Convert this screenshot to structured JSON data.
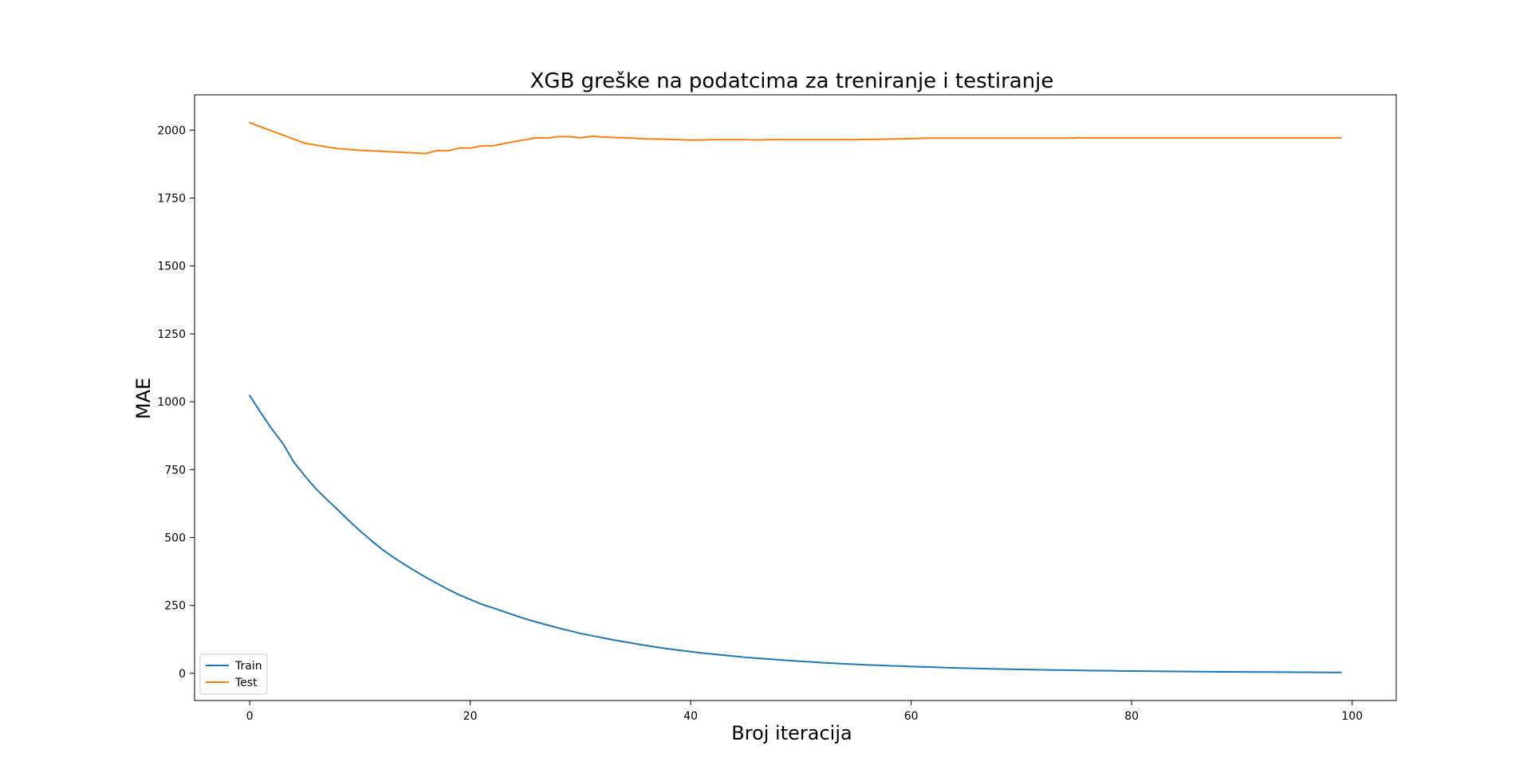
{
  "chart_data": {
    "type": "line",
    "title": "XGB greške na podatcima za treniranje i testiranje",
    "xlabel": "Broj iteracija",
    "ylabel": "MAE",
    "xlim": [
      -5,
      104
    ],
    "ylim": [
      -100,
      2130
    ],
    "xticks": [
      0,
      20,
      40,
      60,
      80,
      100
    ],
    "yticks": [
      0,
      250,
      500,
      750,
      1000,
      1250,
      1500,
      1750,
      2000
    ],
    "grid": false,
    "legend_position": "lower-left",
    "series": [
      {
        "name": "Train",
        "color": "#1f77b4",
        "x": [
          0,
          1,
          2,
          3,
          4,
          5,
          6,
          7,
          8,
          9,
          10,
          11,
          12,
          13,
          14,
          15,
          16,
          17,
          18,
          19,
          20,
          21,
          22,
          23,
          24,
          25,
          26,
          27,
          28,
          29,
          30,
          31,
          32,
          33,
          34,
          35,
          36,
          37,
          38,
          39,
          40,
          41,
          42,
          43,
          44,
          45,
          46,
          47,
          48,
          49,
          50,
          51,
          52,
          53,
          54,
          55,
          56,
          57,
          58,
          59,
          60,
          61,
          62,
          63,
          64,
          65,
          66,
          67,
          68,
          69,
          70,
          71,
          72,
          73,
          74,
          75,
          76,
          77,
          78,
          79,
          80,
          81,
          82,
          83,
          84,
          85,
          86,
          87,
          88,
          89,
          90,
          91,
          92,
          93,
          94,
          95,
          96,
          97,
          98,
          99
        ],
        "values": [
          1023,
          960,
          900,
          847,
          778,
          727,
          680,
          640,
          602,
          562,
          525,
          490,
          457,
          428,
          402,
          377,
          353,
          331,
          309,
          289,
          272,
          255,
          242,
          228,
          214,
          201,
          189,
          178,
          167,
          157,
          147,
          139,
          131,
          123,
          116,
          109,
          102,
          96,
          90,
          85,
          80,
          75,
          71,
          67,
          63,
          59,
          56,
          53,
          50,
          47,
          44,
          42,
          39,
          37,
          35,
          33,
          31,
          30,
          28,
          27,
          25,
          24,
          23,
          21,
          20,
          19,
          18,
          17,
          16,
          15,
          14.5,
          13.8,
          13,
          12.3,
          11.7,
          11,
          10.5,
          10,
          9.5,
          9,
          8.6,
          8.2,
          7.8,
          7.4,
          7,
          6.7,
          6.4,
          6.1,
          5.8,
          5.5,
          5.3,
          5,
          4.8,
          4.6,
          4.4,
          4.2,
          4,
          3.8,
          3.6,
          3.5
        ]
      },
      {
        "name": "Test",
        "color": "#ff7f0e",
        "x": [
          0,
          1,
          2,
          3,
          4,
          5,
          6,
          7,
          8,
          9,
          10,
          11,
          12,
          13,
          14,
          15,
          16,
          17,
          18,
          19,
          20,
          21,
          22,
          23,
          24,
          25,
          26,
          27,
          28,
          29,
          30,
          31,
          32,
          33,
          34,
          35,
          36,
          37,
          38,
          39,
          40,
          41,
          42,
          43,
          44,
          45,
          46,
          47,
          48,
          49,
          50,
          51,
          52,
          53,
          54,
          55,
          56,
          57,
          58,
          59,
          60,
          61,
          62,
          63,
          64,
          65,
          66,
          67,
          68,
          69,
          70,
          71,
          72,
          73,
          74,
          75,
          76,
          77,
          78,
          79,
          80,
          81,
          82,
          83,
          84,
          85,
          86,
          87,
          88,
          89,
          90,
          91,
          92,
          93,
          94,
          95,
          96,
          97,
          98,
          99
        ],
        "values": [
          2028,
          2012,
          1997,
          1982,
          1967,
          1952,
          1945,
          1938,
          1932,
          1929,
          1926,
          1924,
          1922,
          1920,
          1918,
          1916,
          1914,
          1925,
          1924,
          1934,
          1934,
          1942,
          1942,
          1950,
          1958,
          1965,
          1972,
          1971,
          1976,
          1976,
          1972,
          1977,
          1975,
          1973,
          1972,
          1970,
          1968,
          1967,
          1966,
          1965,
          1963,
          1964,
          1965,
          1965,
          1965,
          1965,
          1964,
          1965,
          1965,
          1965,
          1965,
          1965,
          1965,
          1965,
          1965,
          1965,
          1966,
          1966,
          1967,
          1968,
          1969,
          1970,
          1971,
          1971,
          1971,
          1971,
          1971,
          1971,
          1971,
          1971,
          1971,
          1971,
          1971,
          1971,
          1971,
          1972,
          1972,
          1972,
          1972,
          1972,
          1972,
          1972,
          1972,
          1972,
          1972,
          1972,
          1972,
          1972,
          1972,
          1972,
          1972,
          1972,
          1972,
          1972,
          1972,
          1972,
          1972,
          1972,
          1972,
          1972
        ]
      }
    ]
  }
}
